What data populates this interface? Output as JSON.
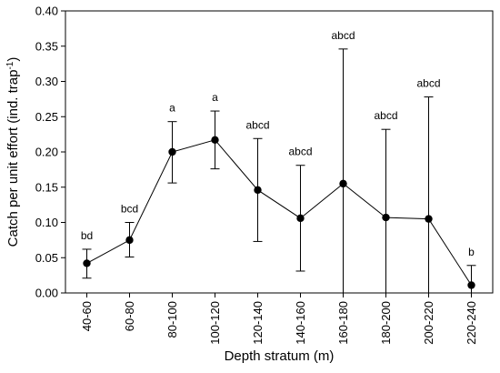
{
  "chart_data": {
    "type": "line",
    "xlabel": "Depth stratum (m)",
    "ylabel": {
      "main": "Catch per unit effort (ind. trap",
      "superscript": "-1",
      "close": ")"
    },
    "ylim": [
      0,
      0.4
    ],
    "yticks": [
      "0.00",
      "0.05",
      "0.10",
      "0.15",
      "0.20",
      "0.25",
      "0.30",
      "0.35",
      "0.40"
    ],
    "categories": [
      "40-60",
      "60-80",
      "80-100",
      "100-120",
      "120-140",
      "140-160",
      "160-180",
      "180-200",
      "200-220",
      "220-240"
    ],
    "values": [
      0.042,
      0.075,
      0.2,
      0.217,
      0.146,
      0.106,
      0.155,
      0.107,
      0.105,
      0.011
    ],
    "error_upper": [
      0.062,
      0.1,
      0.243,
      0.258,
      0.219,
      0.181,
      0.346,
      0.232,
      0.278,
      0.039
    ],
    "error_lower": [
      0.021,
      0.051,
      0.156,
      0.176,
      0.073,
      0.031,
      0.0,
      0.0,
      0.0,
      0.0
    ],
    "significance_labels": [
      "bd",
      "bcd",
      "a",
      "a",
      "abcd",
      "abcd",
      "abcd",
      "abcd",
      "abcd",
      "b"
    ],
    "grid": false,
    "colors": {
      "line": "#000000",
      "marker": "#000000",
      "errorbar": "#000000"
    }
  }
}
